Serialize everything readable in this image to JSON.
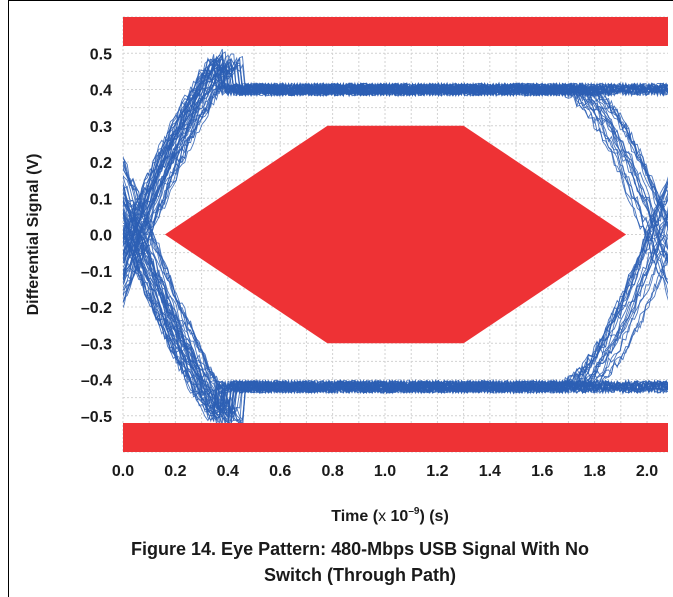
{
  "chart_data": {
    "type": "line",
    "title": "",
    "xlabel": "Time (x 10⁻⁹) (s)",
    "ylabel": "Differential Signal (V)",
    "xlim": [
      0.0,
      2.08
    ],
    "ylim": [
      -0.6,
      0.6
    ],
    "x_ticks": [
      "0.0",
      "0.2",
      "0.4",
      "0.6",
      "0.8",
      "1.0",
      "1.2",
      "1.4",
      "1.6",
      "1.8",
      "2.0"
    ],
    "y_ticks": [
      "0.5",
      "0.4",
      "0.3",
      "0.2",
      "0.1",
      "0.0",
      "–0.1",
      "–0.2",
      "–0.3",
      "–0.4",
      "–0.5"
    ],
    "grid": true,
    "mask_color": "#ee3235",
    "trace_color": "#2d5fb4",
    "eye_mask": {
      "x": [
        0.16,
        0.78,
        1.3,
        1.92,
        1.3,
        0.78
      ],
      "y": [
        0.0,
        0.3,
        0.3,
        0.0,
        -0.3,
        -0.3
      ]
    },
    "upper_limit_band": {
      "y_from": 0.52,
      "y_to": 0.6
    },
    "lower_limit_band": {
      "y_from": -0.6,
      "y_to": -0.52
    },
    "signal_levels": {
      "high": 0.4,
      "low": -0.42
    },
    "crossings_x": [
      0.0,
      2.05
    ]
  },
  "caption": {
    "line1": "Figure 14. Eye Pattern: 480-Mbps USB Signal With No",
    "line2": "Switch (Through Path)"
  }
}
